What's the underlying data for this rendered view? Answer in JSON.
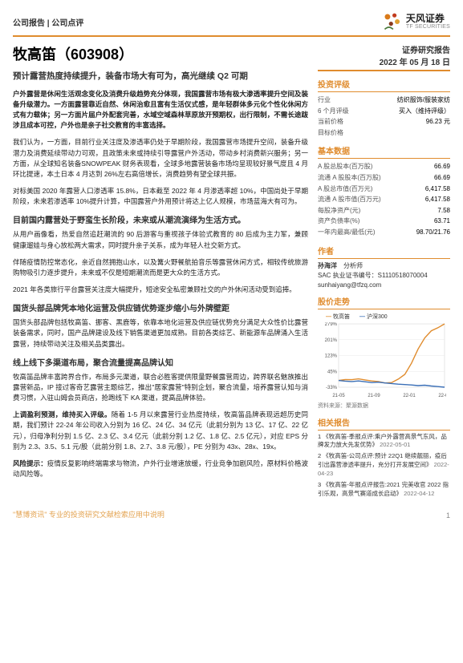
{
  "header": {
    "category": "公司报告 | 公司点评"
  },
  "brand": {
    "cn": "天风证券",
    "en": "TF SECURITIES"
  },
  "title": "牧高笛（603908）",
  "subtitle": "预计露营热度持续提升，装备市场大有可为，高光继续 Q2 可期",
  "sections": {
    "lead": "户外露营是休闲生活观念变化及消费升级趋势充分体现，我国露营市场有极大渗透率提升空间及装备升级潜力。一方面露营靠近自然、休闲治愈且富有生活仪式感，是年轻群体多元化个性化休闲方式有力载体；另一方面片届户外配套完善，水域空域森林草原放开预期权，出行限制，不需长途跋涉且成本可控，户外也是亲子社交教育的丰富选择。",
    "p2": "我们认为，一方面，目前行业关注度及渗透率仍处于早期阶段，我国露营市场提升空间，装备升级潜力及消费延续带动力可观，且政策未来或持续引导露营户外活动，带动乡村消费新兴服务；另一方面，从全球知名装备SNOWPEAK 财务表现看，全球多地露营装备市场均呈现较好景气度且 4 月环比提速，本土日本 4 月达到 26%左右高倍增长，消费趋势有望全球共振。",
    "p3": "对标美国 2020 年露营人口渗透率 15.8%，日本截至 2022 年 4 月渗透率超 10%，中国尚处于早期阶段，未来若渗透率 10%提升计算，中国露营户外用预计将达上亿人规模，市场蓝海大有可为。",
    "h2": "目前国内露营处于野蛮生长阶段，未来或从潮流演绎为生活方式。",
    "p4": "从用户画像看，热爱自然追赶潮流的 90 后游客与重视孩子体验式教育的 80 后成为主力军，兼顾健康遛娃与身心放松两大需求，同时提升亲子关系，成为年轻人社交新方式。",
    "p5": "伴随疫情防控常态化，亲近自然拥抱山水，以及篝火野餐航拍音乐等露营休闲方式，相较传统旅游购物吸引力逐步提升，未来或不仅是短期潮流而是更大众的生活方式。",
    "p6": "2021 年各类旅行平台露营关注度大幅提升，短途安全私密兼顾社交的户外休闲活动受到追捧。",
    "h3": "国货头部品牌凭本地化运营及供应链优势逐步缩小与外牌壁距",
    "p7": "国货头部品牌包括牧高笛、挪客、黑鹿等，依靠本地化运营及供应链优势充分满足大众性价比露营装备需求，同时，国产品牌建设及线下销售渠道更加成熟。目前各类综艺、新能源车品牌涌入生活露营，持续带动关注及相关品类露出。",
    "h4": "线上线下多渠道布局，聚合流量提高品牌认知",
    "p8": "牧高笛品牌丰富跨界合作，布局多元渠道，联合必胜客提供限量野餐露营周边，跨界联名魅族推出露营新品，IP 接过客奇艺露营主题综艺，推出\"居家露营\"特别企划，聚合流量，培养露营认知与消费习惯，入驻山姆会员商店，抢跑线下 KA 渠道，提高品牌体验。",
    "h5": "上调盈利预测，维持买入评级。",
    "p9": "随着 1-5 月以来露营行业热度持续，牧高笛品牌表现远超历史同期，我们预计 22-24 年公司收入分别为 16 亿、24 亿、34 亿元（此前分别为 13 亿、17 亿、22 亿元），归母净利分别 1.5 亿、2.3 亿、3.4 亿元（此前分别 1.2 亿、1.8 亿、2.5 亿元），对应 EPS 分别为 2.3、3.5、5.1 元/股（此前分别 1.8、2.7、3.8 元/股），PE 分别为 43x、28x、19x。",
    "risk_label": "风险提示：",
    "risk": "疫情反复影响终端需求与物流，户外行业增速放缓，行业竞争加剧风险，原材料价格波动风险等。"
  },
  "sidebar": {
    "report_type": "证券研究报告",
    "date": "2022 年 05 月 18 日",
    "rating_title": "投资评级",
    "rating": [
      {
        "k": "行业",
        "v": "纺织服饰/服装家纺"
      },
      {
        "k": "6 个月评级",
        "v": "买入（维持评级）"
      },
      {
        "k": "当前价格",
        "v": "96.23 元"
      },
      {
        "k": "目标价格",
        "v": ""
      }
    ],
    "basic_title": "基本数据",
    "basic": [
      {
        "k": "A 股总股本(百万股)",
        "v": "66.69"
      },
      {
        "k": "流通 A 股股本(百万股)",
        "v": "66.69"
      },
      {
        "k": "A 股总市值(百万元)",
        "v": "6,417.58"
      },
      {
        "k": "流通 A 股市值(百万元)",
        "v": "6,417.58"
      },
      {
        "k": "每股净资产(元)",
        "v": "7.58"
      },
      {
        "k": "资产负债率(%)",
        "v": "63.71"
      },
      {
        "k": "一年内最高/最低(元)",
        "v": "98.70/21.76"
      }
    ],
    "analyst_title": "作者",
    "analyst_name": "孙海洋",
    "analyst_role": "分析师",
    "analyst_cert": "SAC 执业证书编号：S1110518070004",
    "analyst_email": "sunhaiyang@tfzq.com",
    "chart_title": "股价走势",
    "chart": {
      "type": "line",
      "series": [
        {
          "name": "牧高笛",
          "color": "#e08c2e",
          "values": [
            0,
            5,
            4,
            8,
            3,
            -2,
            -5,
            -12,
            -10,
            7,
            30,
            85,
            155,
            210,
            245,
            260,
            279
          ]
        },
        {
          "name": "沪深300",
          "color": "#3a6fb7",
          "values": [
            0,
            -3,
            -5,
            -2,
            -6,
            -10,
            -8,
            -12,
            -15,
            -18,
            -20,
            -22,
            -25,
            -23,
            -27,
            -30,
            -33
          ]
        }
      ],
      "x_labels": [
        "21-05",
        "21-09",
        "22-01",
        "22-05"
      ],
      "y_ticks": [
        "-33%",
        "45%",
        "123%",
        "201%",
        "279%"
      ],
      "y_range": [
        -33,
        279
      ],
      "width": 160,
      "height": 95,
      "grid_color": "#e9e9e9",
      "background": "#ffffff"
    },
    "chart_source": "资料来源：聚源数据",
    "related_title": "相关报告",
    "related": [
      {
        "t": "1 《牧高笛-季报点评:乘户外露营高景气东风，品牌发力放大先发优势》",
        "d": "2022-05-01"
      },
      {
        "t": "2 《牧高笛-公司点评:预计 22Q1 继续靓丽，疫后引出露营渗透率提升，充分打开发展空间》",
        "d": "2022-04-23"
      },
      {
        "t": "3 《牧高笛-年报点评报告:2021 完美收官 2022 指引乐观，高景气赛道成长启动》",
        "d": "2022-04-12"
      }
    ]
  },
  "footer": {
    "watermark": "\"慧博资讯\" 专业的投资研究文献检索应用中说明",
    "pageno": "1"
  }
}
